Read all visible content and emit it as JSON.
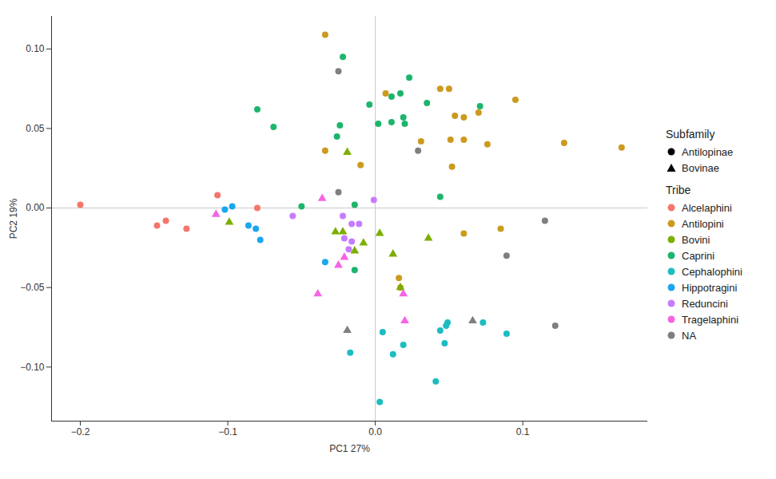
{
  "chart_data": {
    "type": "scatter",
    "x_label": "PC1 27%",
    "y_label": "PC2 19%",
    "xlim": [
      -0.2195,
      0.1847
    ],
    "ylim": [
      -0.134,
      0.1205
    ],
    "xticks": [
      {
        "value": -0.2,
        "label": "−0.2"
      },
      {
        "value": -0.1,
        "label": "−0.1"
      },
      {
        "value": 0,
        "label": "0.0"
      },
      {
        "value": 0.1,
        "label": "0.1"
      }
    ],
    "yticks": [
      {
        "value": -0.1,
        "label": "−0.10"
      },
      {
        "value": -0.05,
        "label": "−0.05"
      },
      {
        "value": 0,
        "label": "0.00"
      },
      {
        "value": 0.05,
        "label": "0.05"
      },
      {
        "value": 0.1,
        "label": "0.10"
      }
    ],
    "vlines": [
      0
    ],
    "hlines": [
      0
    ],
    "legend": "right",
    "shape_legend": {
      "title": "Subfamily",
      "items": [
        {
          "name": "Antilopinae",
          "marker": "circle"
        },
        {
          "name": "Bovinae",
          "marker": "triangle"
        }
      ]
    },
    "color_legend_title": "Tribe",
    "series": [
      {
        "name": "Alcelaphini",
        "color": "#F4766D",
        "x": [
          -0.2,
          -0.148,
          -0.142,
          -0.128,
          -0.107,
          -0.08
        ],
        "y": [
          0.002,
          -0.011,
          -0.008,
          -0.013,
          0.008,
          0.0
        ],
        "subfamily": [
          "Antilopinae",
          "Antilopinae",
          "Antilopinae",
          "Antilopinae",
          "Antilopinae",
          "Antilopinae"
        ]
      },
      {
        "name": "Antilopini",
        "color": "#CC9A1E",
        "x": [
          -0.034,
          0.007,
          0.044,
          0.05,
          0.095,
          0.054,
          0.06,
          0.07,
          0.051,
          0.06,
          0.076,
          0.031,
          0.128,
          0.167,
          -0.034,
          0.052,
          -0.01,
          0.06,
          0.085,
          0.016,
          0.017
        ],
        "y": [
          0.109,
          0.072,
          0.075,
          0.075,
          0.068,
          0.058,
          0.057,
          0.06,
          0.043,
          0.043,
          0.04,
          0.042,
          0.041,
          0.038,
          0.036,
          0.026,
          0.027,
          -0.016,
          -0.013,
          -0.044,
          -0.05
        ],
        "subfamily": [
          "Antilopinae",
          "Antilopinae",
          "Antilopinae",
          "Antilopinae",
          "Antilopinae",
          "Antilopinae",
          "Antilopinae",
          "Antilopinae",
          "Antilopinae",
          "Antilopinae",
          "Antilopinae",
          "Antilopinae",
          "Antilopinae",
          "Antilopinae",
          "Antilopinae",
          "Antilopinae",
          "Antilopinae",
          "Antilopinae",
          "Antilopinae",
          "Antilopinae",
          "Antilopinae"
        ]
      },
      {
        "name": "Bovini",
        "color": "#7CAE00",
        "x": [
          -0.019,
          -0.099,
          -0.027,
          -0.022,
          0.003,
          0.036,
          -0.008,
          -0.014,
          0.012,
          0.017
        ],
        "y": [
          0.035,
          -0.009,
          -0.015,
          -0.015,
          -0.016,
          -0.019,
          -0.022,
          -0.027,
          -0.029,
          -0.05
        ],
        "subfamily": [
          "Bovinae",
          "Bovinae",
          "Bovinae",
          "Bovinae",
          "Bovinae",
          "Bovinae",
          "Bovinae",
          "Bovinae",
          "Bovinae",
          "Bovinae"
        ]
      },
      {
        "name": "Caprini",
        "color": "#1DB56C",
        "x": [
          -0.08,
          -0.069,
          -0.022,
          -0.026,
          -0.024,
          -0.004,
          0.011,
          0.017,
          0.023,
          0.019,
          0.035,
          0.071,
          0.002,
          0.011,
          0.02,
          -0.05,
          -0.014,
          0.044,
          -0.014
        ],
        "y": [
          0.062,
          0.051,
          0.095,
          0.045,
          0.052,
          0.065,
          0.07,
          0.072,
          0.082,
          0.057,
          0.066,
          0.064,
          0.053,
          0.054,
          0.053,
          0.001,
          0.002,
          0.007,
          -0.039
        ],
        "subfamily": [
          "Antilopinae",
          "Antilopinae",
          "Antilopinae",
          "Antilopinae",
          "Antilopinae",
          "Antilopinae",
          "Antilopinae",
          "Antilopinae",
          "Antilopinae",
          "Antilopinae",
          "Antilopinae",
          "Antilopinae",
          "Antilopinae",
          "Antilopinae",
          "Antilopinae",
          "Antilopinae",
          "Antilopinae",
          "Antilopinae",
          "Antilopinae"
        ]
      },
      {
        "name": "Cephalophini",
        "color": "#1CBCC2",
        "x": [
          0.005,
          0.019,
          0.012,
          0.003,
          -0.017,
          0.041,
          0.044,
          0.048,
          0.049,
          0.047,
          0.073,
          0.089
        ],
        "y": [
          -0.078,
          -0.086,
          -0.092,
          -0.122,
          -0.091,
          -0.109,
          -0.077,
          -0.074,
          -0.072,
          -0.085,
          -0.072,
          -0.079
        ],
        "subfamily": [
          "Antilopinae",
          "Antilopinae",
          "Antilopinae",
          "Antilopinae",
          "Antilopinae",
          "Antilopinae",
          "Antilopinae",
          "Antilopinae",
          "Antilopinae",
          "Antilopinae",
          "Antilopinae",
          "Antilopinae"
        ]
      },
      {
        "name": "Hippotragini",
        "color": "#1BA6F0",
        "x": [
          -0.102,
          -0.097,
          -0.086,
          -0.081,
          -0.078,
          -0.034
        ],
        "y": [
          -0.001,
          0.001,
          -0.011,
          -0.013,
          -0.02,
          -0.034
        ],
        "subfamily": [
          "Antilopinae",
          "Antilopinae",
          "Antilopinae",
          "Antilopinae",
          "Antilopinae",
          "Antilopinae"
        ]
      },
      {
        "name": "Reduncini",
        "color": "#C77CFF",
        "x": [
          -0.056,
          -0.001,
          -0.022,
          -0.016,
          -0.011,
          -0.021,
          -0.016,
          -0.018
        ],
        "y": [
          -0.005,
          0.005,
          -0.005,
          -0.01,
          -0.01,
          -0.019,
          -0.021,
          -0.026
        ],
        "subfamily": [
          "Antilopinae",
          "Antilopinae",
          "Antilopinae",
          "Antilopinae",
          "Antilopinae",
          "Antilopinae",
          "Antilopinae",
          "Antilopinae"
        ]
      },
      {
        "name": "Tragelaphini",
        "color": "#F564E3",
        "x": [
          -0.108,
          -0.036,
          -0.021,
          -0.025,
          -0.039,
          0.019,
          0.02
        ],
        "y": [
          -0.004,
          0.006,
          -0.031,
          -0.036,
          -0.054,
          -0.054,
          -0.071
        ],
        "subfamily": [
          "Bovinae",
          "Bovinae",
          "Bovinae",
          "Bovinae",
          "Bovinae",
          "Bovinae",
          "Bovinae"
        ]
      },
      {
        "name": "NA",
        "color": "#7F7F7F",
        "x": [
          -0.025,
          -0.025,
          0.029,
          0.115,
          0.089,
          0.122,
          -0.019,
          0.066
        ],
        "y": [
          0.086,
          0.01,
          0.036,
          -0.008,
          -0.03,
          -0.074,
          -0.077,
          -0.071
        ],
        "subfamily": [
          "Antilopinae",
          "Antilopinae",
          "Antilopinae",
          "Antilopinae",
          "Antilopinae",
          "Antilopinae",
          "Bovinae",
          "Bovinae"
        ]
      }
    ]
  }
}
